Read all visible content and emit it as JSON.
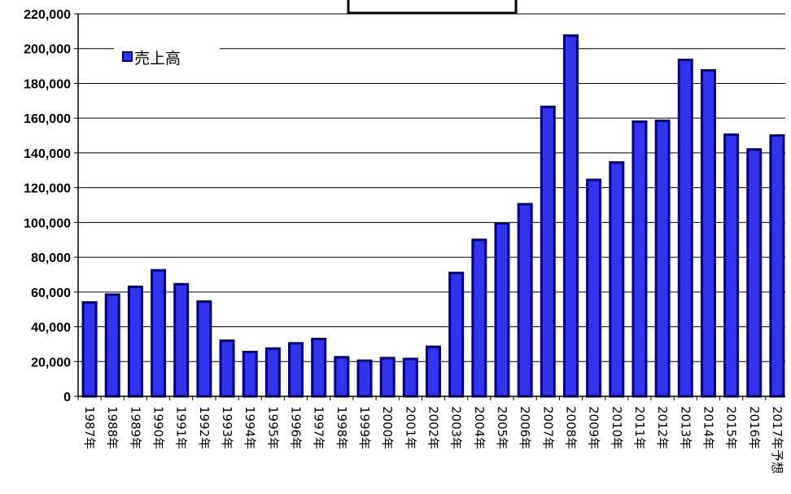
{
  "chart_data": {
    "type": "bar",
    "title": "",
    "xlabel": "",
    "ylabel": "",
    "ylim": [
      0,
      220000
    ],
    "yticks": [
      "0",
      "20,000",
      "40,000",
      "60,000",
      "80,000",
      "100,000",
      "120,000",
      "140,000",
      "160,000",
      "180,000",
      "200,000",
      "220,000"
    ],
    "grid": true,
    "legend_position": "top-left",
    "categories": [
      "1987年",
      "1988年",
      "1989年",
      "1990年",
      "1991年",
      "1992年",
      "1993年",
      "1994年",
      "1995年",
      "1996年",
      "1997年",
      "1998年",
      "1999年",
      "2000年",
      "2001年",
      "2002年",
      "2003年",
      "2004年",
      "2005年",
      "2006年",
      "2007年",
      "2008年",
      "2009年",
      "2010年",
      "2011年",
      "2012年",
      "2013年",
      "2014年",
      "2015年",
      "2016年",
      "2017年予想"
    ],
    "series": [
      {
        "name": "売上高",
        "color": "#3333ee",
        "values": [
          54000,
          58500,
          63000,
          72500,
          64500,
          54500,
          32000,
          25500,
          27500,
          30500,
          33000,
          22500,
          20500,
          22000,
          21500,
          28500,
          71000,
          90000,
          99500,
          110500,
          166500,
          207500,
          124500,
          134500,
          158000,
          158500,
          193500,
          187500,
          150500,
          142000,
          150000
        ]
      }
    ]
  }
}
